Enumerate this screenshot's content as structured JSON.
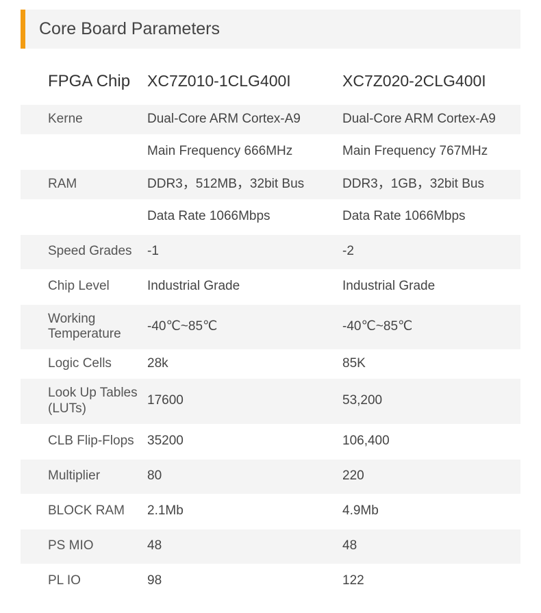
{
  "title": "Core Board Parameters",
  "colors": {
    "accent": "#f39c12",
    "row_shaded_bg": "#f4f4f4",
    "header_bg": "#f4f4f4",
    "text_primary": "#333333",
    "text_label": "#555555",
    "text_value": "#444444",
    "background": "#ffffff"
  },
  "table": {
    "header": {
      "label": "FPGA Chip",
      "col1": "XC7Z010-1CLG400I",
      "col2": "XC7Z020-2CLG400I"
    },
    "rows": [
      {
        "label": "Kerne",
        "col1": "Dual-Core ARM Cortex-A9",
        "col2": "Dual-Core ARM Cortex-A9",
        "shaded": true
      },
      {
        "label": "",
        "col1": "Main Frequency 666MHz",
        "col2": "Main Frequency 767MHz",
        "shaded": false
      },
      {
        "label": "RAM",
        "col1": "DDR3，512MB，32bit Bus",
        "col2": "DDR3，1GB，32bit Bus",
        "shaded": true
      },
      {
        "label": "",
        "col1": "Data Rate 1066Mbps",
        "col2": "Data Rate 1066Mbps",
        "shaded": false
      },
      {
        "label": "Speed Grades",
        "col1": "-1",
        "col2": "-2",
        "shaded": true
      },
      {
        "label": "Chip Level",
        "col1": "Industrial Grade",
        "col2": "Industrial Grade",
        "shaded": false
      },
      {
        "label": "Working Temperature",
        "col1": "-40℃~85℃",
        "col2": "-40℃~85℃",
        "shaded": true
      },
      {
        "label": "Logic Cells",
        "col1": "28k",
        "col2": "85K",
        "shaded": false
      },
      {
        "label": "Look Up Tables (LUTs)",
        "col1": "17600",
        "col2": "53,200",
        "shaded": true
      },
      {
        "label": "CLB Flip-Flops",
        "col1": "35200",
        "col2": "106,400",
        "shaded": false
      },
      {
        "label": "Multiplier",
        "col1": "80",
        "col2": "220",
        "shaded": true
      },
      {
        "label": "BLOCK RAM",
        "col1": "2.1Mb",
        "col2": "4.9Mb",
        "shaded": false
      },
      {
        "label": "PS MIO",
        "col1": "48",
        "col2": "48",
        "shaded": true
      },
      {
        "label": "PL IO",
        "col1": "98",
        "col2": "122",
        "shaded": false
      }
    ]
  }
}
